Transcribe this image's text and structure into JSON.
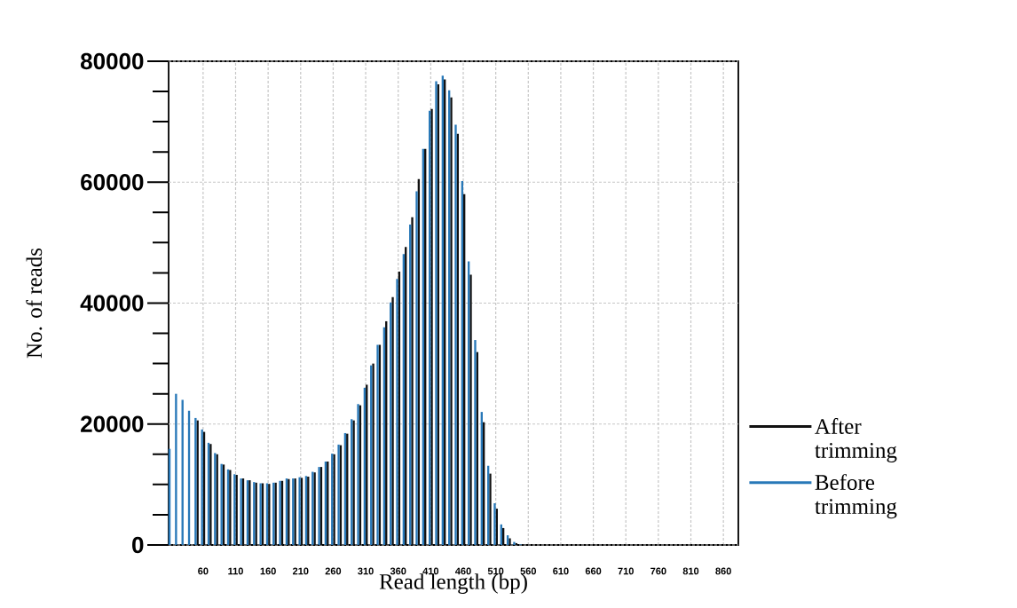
{
  "chart_data": {
    "type": "bar",
    "xlabel": "Read length (bp)",
    "ylabel": "No. of reads",
    "x": [
      10,
      20,
      30,
      40,
      50,
      60,
      70,
      80,
      90,
      100,
      110,
      120,
      130,
      140,
      150,
      160,
      170,
      180,
      190,
      200,
      210,
      220,
      230,
      240,
      250,
      260,
      270,
      280,
      290,
      300,
      310,
      320,
      330,
      340,
      350,
      360,
      370,
      380,
      390,
      400,
      410,
      420,
      430,
      440,
      450,
      460,
      470,
      480,
      490,
      500,
      510,
      520,
      530,
      540,
      550
    ],
    "series": [
      {
        "name": "After trimming",
        "color": "#111111",
        "values": [
          null,
          null,
          null,
          null,
          20600,
          18700,
          16700,
          15000,
          13300,
          12400,
          11600,
          11000,
          10700,
          10300,
          10200,
          10100,
          10300,
          10600,
          10900,
          11000,
          11100,
          11300,
          12000,
          12900,
          13800,
          15000,
          16500,
          18400,
          20600,
          23100,
          26500,
          30000,
          33100,
          37000,
          41000,
          45200,
          49300,
          54200,
          60500,
          65500,
          72100,
          76200,
          77000,
          74000,
          68000,
          58000,
          44700,
          31900,
          20300,
          11800,
          6000,
          2800,
          1100,
          300,
          100
        ]
      },
      {
        "name": "Before trimming",
        "color": "#2878b8",
        "values": [
          15900,
          25000,
          24000,
          22200,
          21000,
          19100,
          16900,
          15200,
          13400,
          12500,
          11700,
          11000,
          10700,
          10400,
          10200,
          10200,
          10300,
          10600,
          11000,
          11000,
          11200,
          11400,
          12100,
          12900,
          13800,
          15100,
          16600,
          18500,
          20800,
          23300,
          26000,
          29700,
          33100,
          36000,
          40100,
          44000,
          48100,
          53000,
          58500,
          65500,
          71800,
          76700,
          77600,
          75200,
          69500,
          60200,
          46900,
          33900,
          22000,
          13100,
          6900,
          3400,
          1600,
          500,
          100
        ]
      }
    ],
    "xlim": [
      7,
      883
    ],
    "ylim": [
      0,
      80000
    ],
    "xticks": [
      60,
      110,
      160,
      210,
      260,
      310,
      360,
      410,
      460,
      510,
      560,
      610,
      660,
      710,
      760,
      810,
      860
    ],
    "yticks": [
      0,
      20000,
      40000,
      60000,
      80000
    ],
    "grid": true,
    "legend": "right"
  }
}
